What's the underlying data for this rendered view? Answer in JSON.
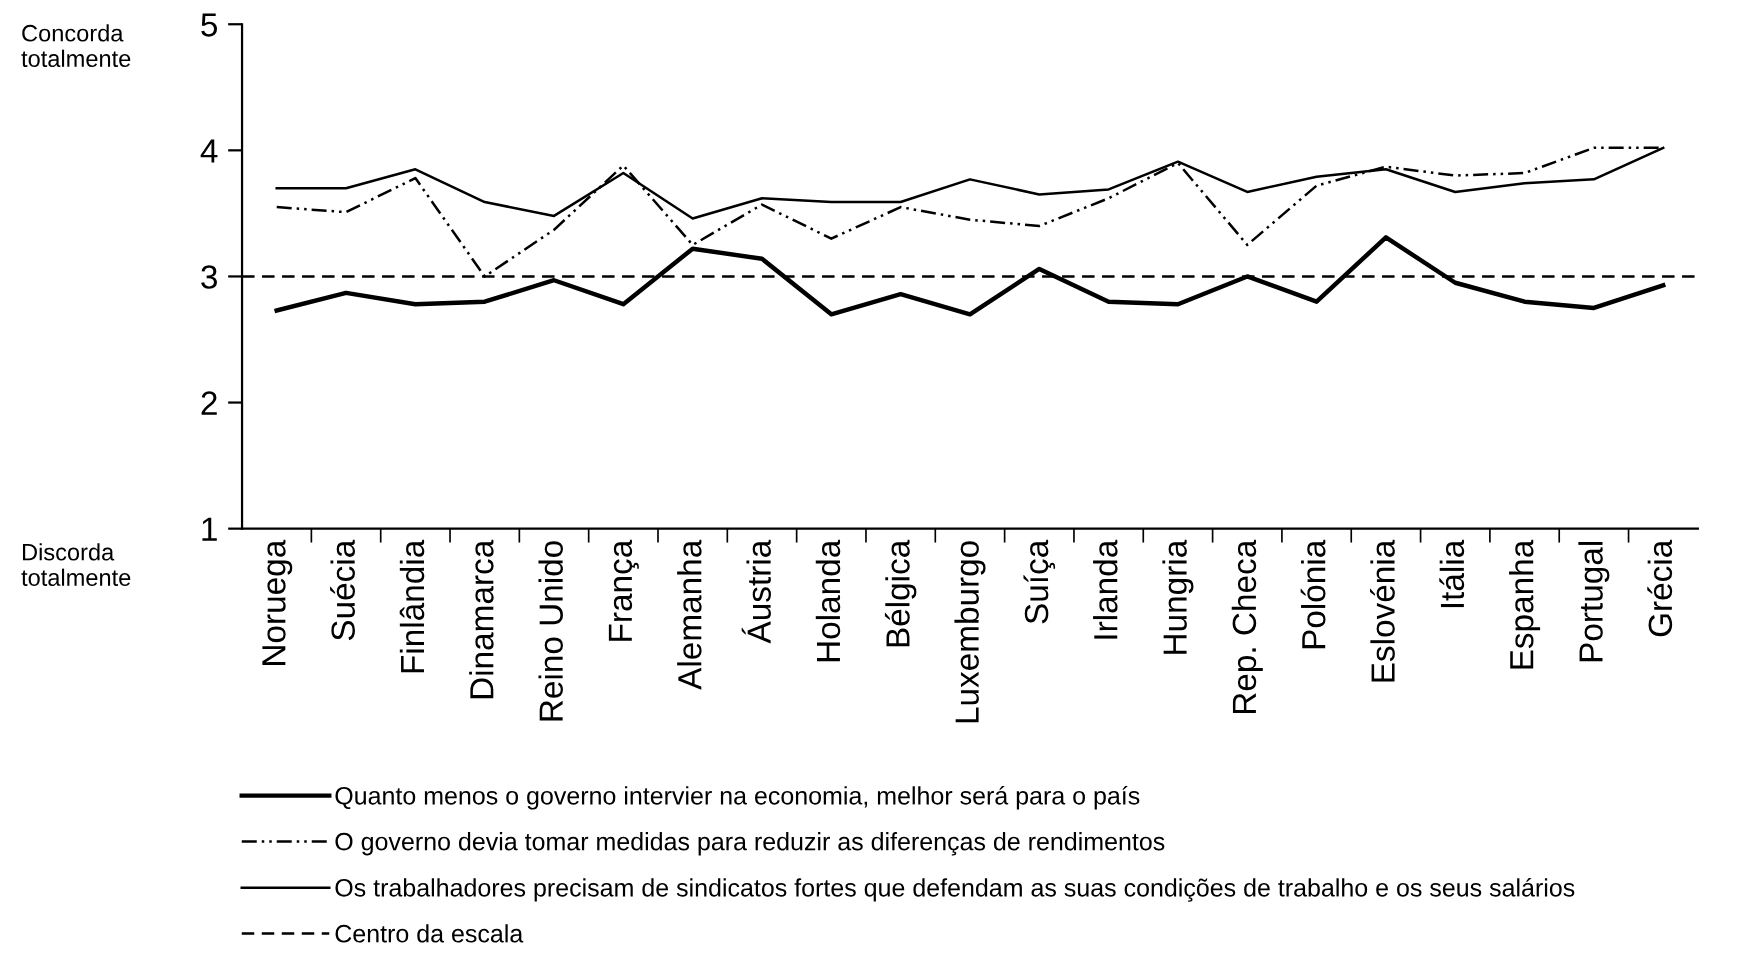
{
  "chart_data": {
    "type": "line",
    "categories": [
      "Noruega",
      "Suécia",
      "Finlândia",
      "Dinamarca",
      "Reino Unido",
      "França",
      "Alemanha",
      "Áustria",
      "Holanda",
      "Bélgica",
      "Luxemburgo",
      "Suíça",
      "Irlanda",
      "Hungria",
      "Rep. Checa",
      "Polónia",
      "Eslovénia",
      "Itália",
      "Espanha",
      "Portugal",
      "Grécia"
    ],
    "series": [
      {
        "name": "Quanto menos o governo intervier na economia, melhor será para o país",
        "color": "#000000",
        "line_style": "solid",
        "values": [
          2.73,
          2.87,
          2.78,
          2.8,
          2.97,
          2.78,
          3.22,
          3.14,
          2.7,
          2.86,
          2.7,
          3.06,
          2.8,
          2.78,
          3.0,
          2.8,
          3.31,
          2.95,
          2.8,
          2.75,
          2.93
        ]
      },
      {
        "name": "O governo devia tomar medidas para reduzir as diferenças de rendimentos",
        "color": "#000000",
        "line_style": "dashdot",
        "values": [
          3.55,
          3.51,
          3.78,
          3.0,
          3.37,
          3.88,
          3.25,
          3.57,
          3.3,
          3.55,
          3.45,
          3.4,
          3.62,
          3.9,
          3.25,
          3.72,
          3.87,
          3.8,
          3.82,
          4.02,
          4.02
        ]
      },
      {
        "name": "Os trabalhadores precisam de sindicatos fortes que defendam as suas condições de trabalho e os seus salários",
        "color": "#000000",
        "line_style": "solid",
        "values": [
          3.7,
          3.7,
          3.85,
          3.59,
          3.48,
          3.82,
          3.46,
          3.62,
          3.59,
          3.59,
          3.77,
          3.65,
          3.69,
          3.91,
          3.67,
          3.79,
          3.85,
          3.67,
          3.74,
          3.77,
          4.02
        ]
      }
    ],
    "ref_lines": [
      {
        "axis": "y",
        "value": 3,
        "label": "Centro da escala",
        "color": "#000000",
        "line_style": "dashed"
      }
    ],
    "ylim": [
      1,
      5
    ],
    "yticks": [
      1,
      2,
      3,
      4,
      5
    ],
    "annotations": [
      "Concorda totalmente",
      "Discorda totalmente"
    ],
    "grid": false,
    "legend": "bottom",
    "marker": "none"
  }
}
